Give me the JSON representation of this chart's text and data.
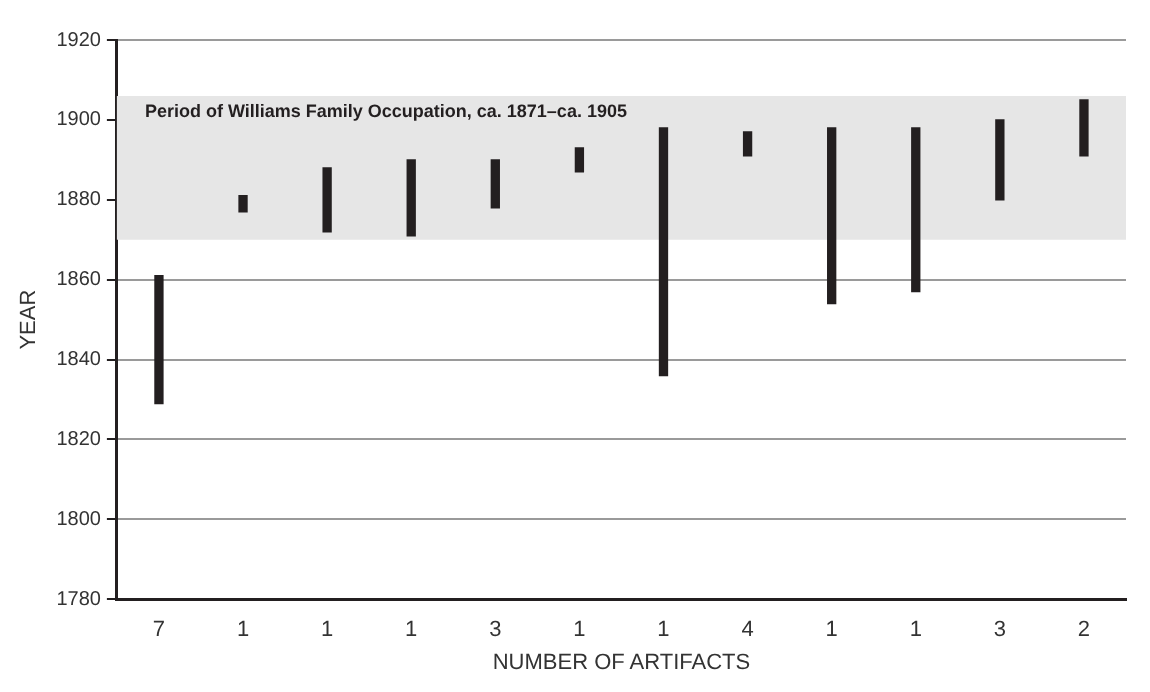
{
  "chart_data": {
    "type": "bar",
    "xlabel": "NUMBER OF ARTIFACTS",
    "ylabel": "YEAR",
    "categories": [
      "7",
      "1",
      "1",
      "1",
      "3",
      "1",
      "1",
      "4",
      "1",
      "1",
      "3",
      "2"
    ],
    "base": [
      1829,
      1877,
      1872,
      1871,
      1878,
      1887,
      1836,
      1891,
      1854,
      1857,
      1880,
      1891
    ],
    "values": [
      32,
      4,
      16,
      19,
      12,
      6,
      62,
      6,
      44,
      41,
      20,
      14
    ],
    "color": "#231f20",
    "ylim": [
      1780,
      1920
    ],
    "yticks": [
      1780,
      1800,
      1820,
      1840,
      1860,
      1880,
      1900,
      1920
    ],
    "grid": "y",
    "bands": [
      {
        "axis": "y",
        "from": 1870,
        "to": 1906,
        "label": "Period of Williams Family Occupation, ca. 1871–ca. 1905",
        "color": "#e6e6e6"
      }
    ]
  }
}
